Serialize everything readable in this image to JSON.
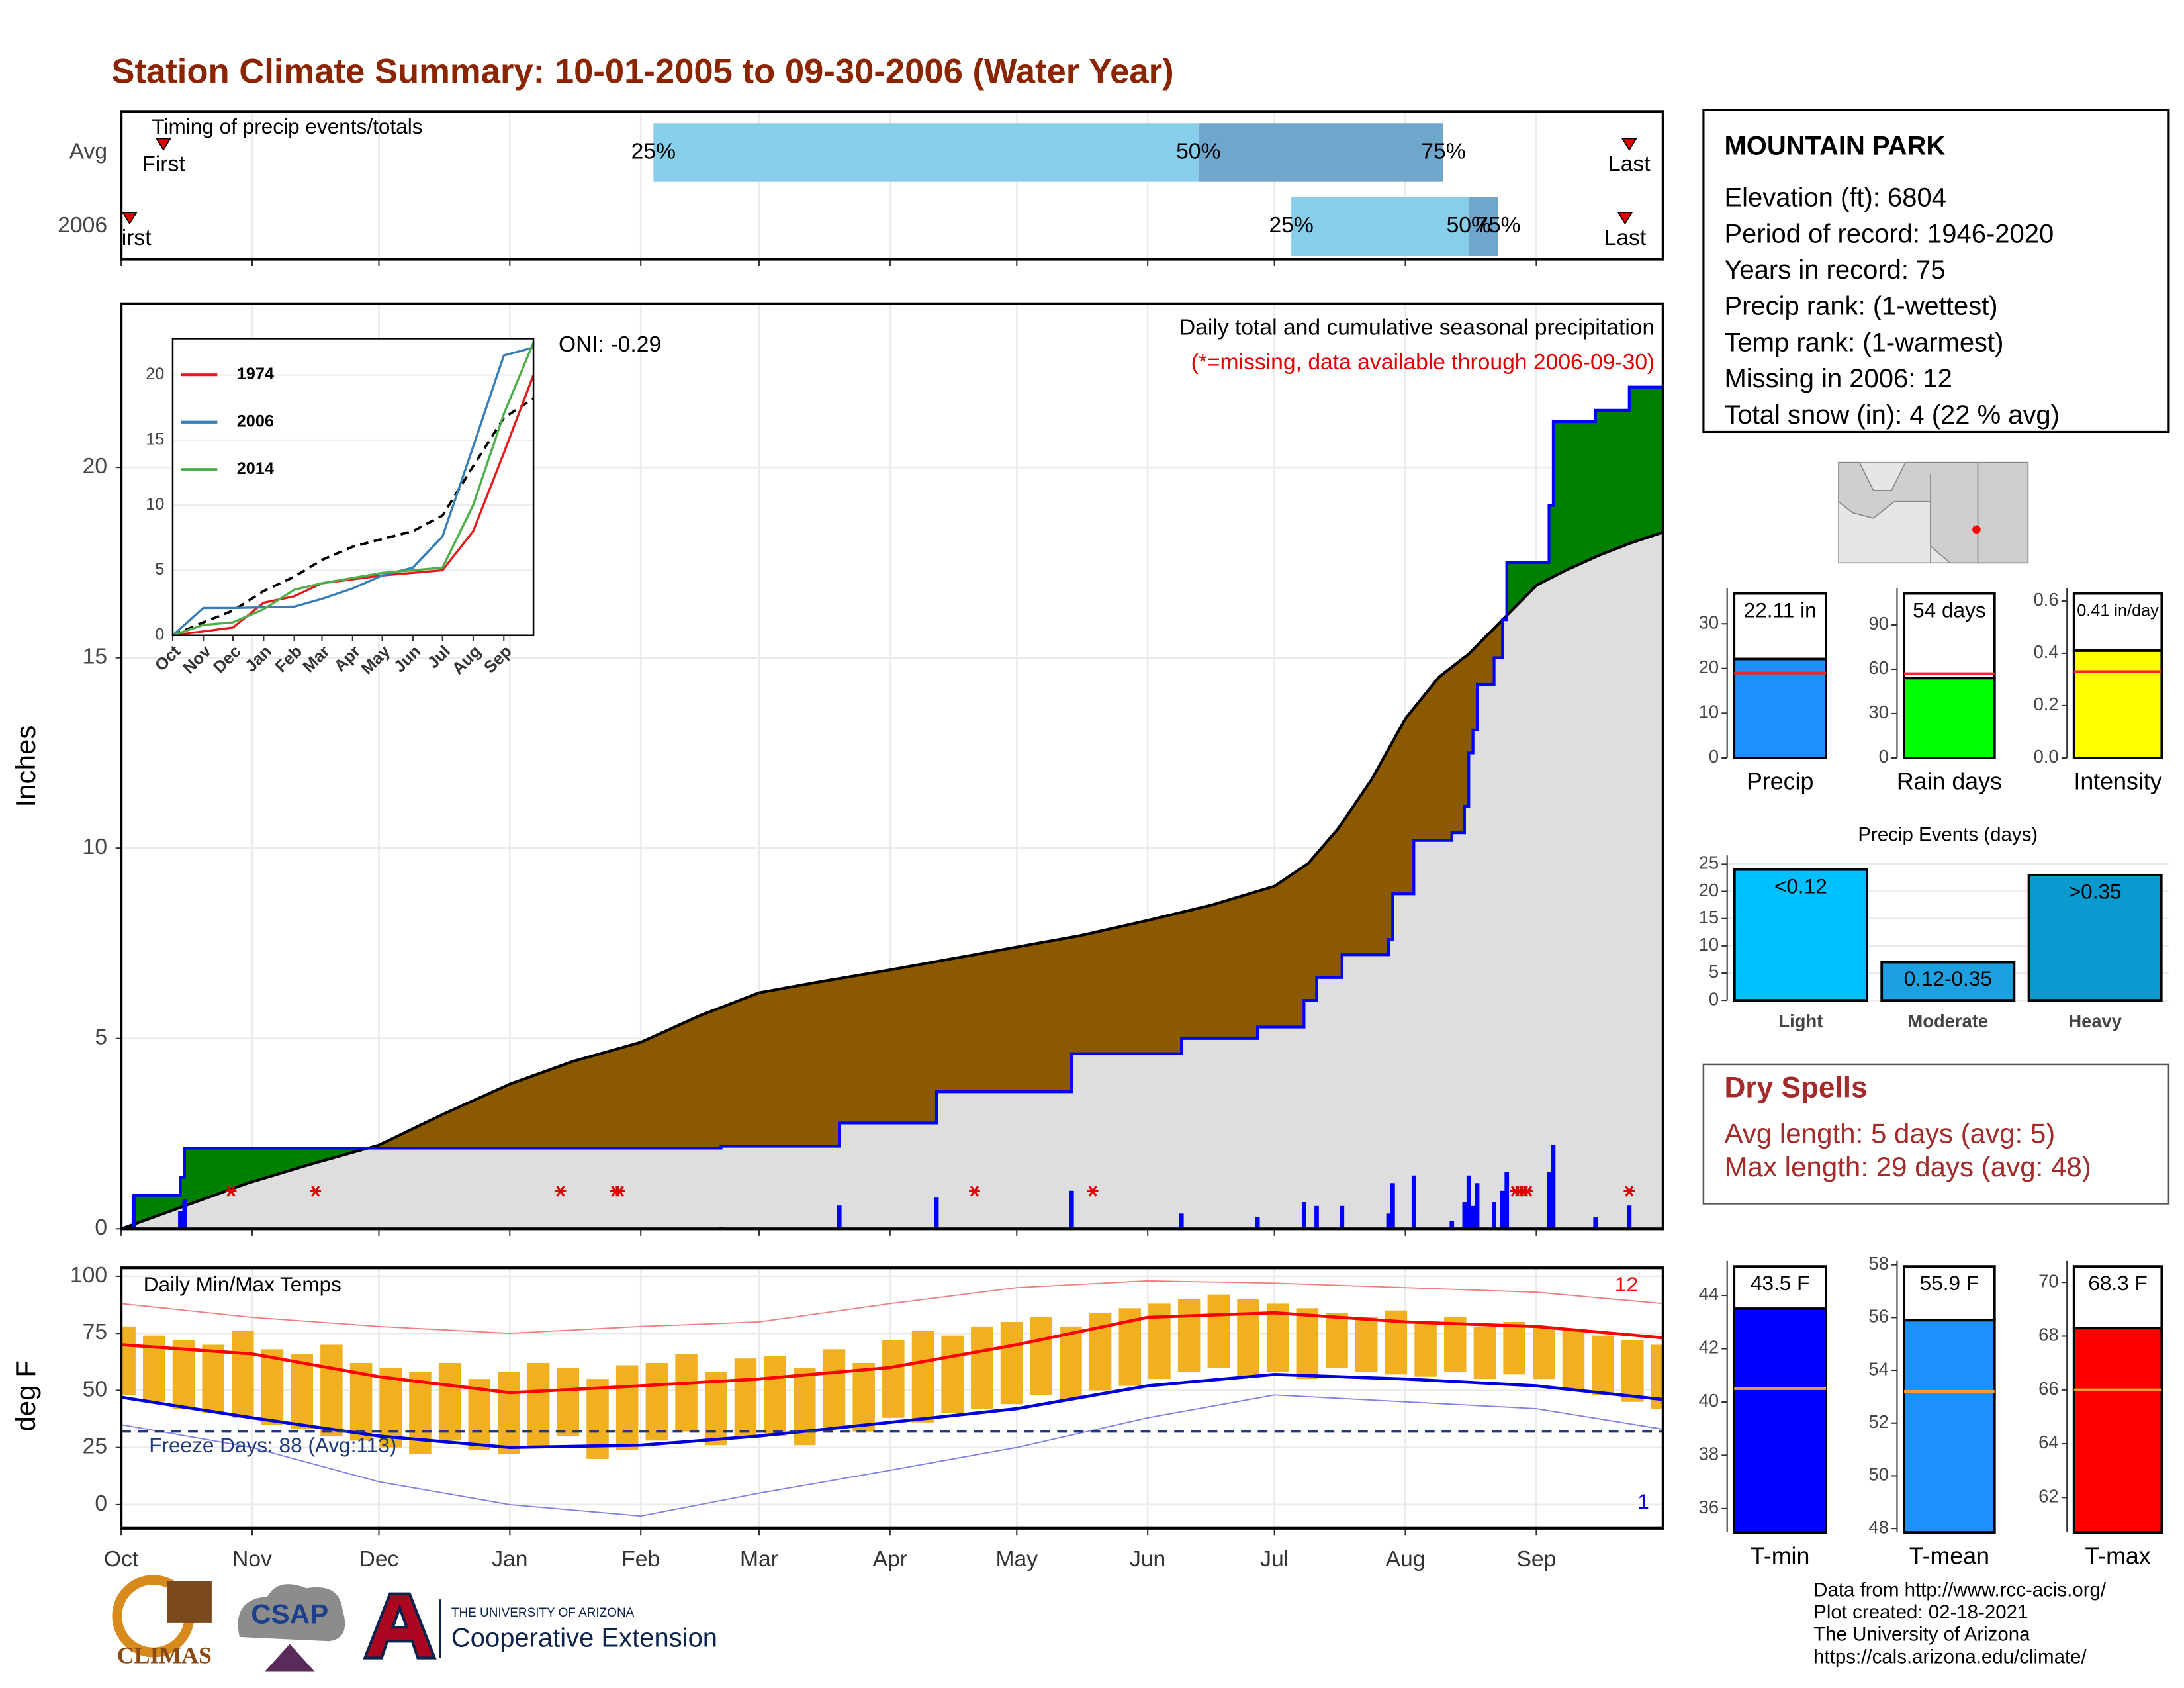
{
  "title": "Station Climate Summary: 10-01-2005 to 09-30-2006 (Water Year)",
  "station": {
    "name": "MOUNTAIN PARK",
    "lines": [
      "Elevation (ft): 6804",
      "Period of record: 1946-2020",
      "Years in record: 75",
      "Precip rank:  (1-wettest)",
      "Temp rank:  (1-warmest)",
      "Missing in 2006: 12",
      "Total snow (in): 4 (22 % avg)"
    ]
  },
  "dry_spells": {
    "title": "Dry Spells",
    "lines": [
      "Avg length: 5 days (avg: 5)",
      "Max length: 29 days (avg: 48)"
    ]
  },
  "footer": {
    "credits": [
      "Data from http://www.rcc-acis.org/",
      "Plot created: 02-18-2021",
      "The University of Arizona",
      "https://cals.arizona.edu/climate/"
    ],
    "logos": [
      "CLIMAS",
      "CSAP",
      "THE UNIVERSITY OF ARIZONA",
      "Cooperative Extension"
    ]
  },
  "chart_data": [
    {
      "type": "range",
      "title": "Timing of precip events/totals",
      "categories": [
        "Avg",
        "2006"
      ],
      "xlim": [
        0,
        365
      ],
      "xticks": [
        0,
        31,
        61,
        92,
        123,
        151,
        182,
        212,
        243,
        273,
        304,
        335
      ],
      "series": [
        {
          "name": "First",
          "values": [
            10,
            2
          ]
        },
        {
          "name": "25%",
          "values": [
            126,
            277
          ]
        },
        {
          "name": "50%",
          "values": [
            255,
            319
          ]
        },
        {
          "name": "75%",
          "values": [
            313,
            326
          ]
        },
        {
          "name": "Last",
          "values": [
            357,
            356
          ]
        }
      ],
      "colors": [
        "#87ceeb",
        "#6fa6cc"
      ],
      "marker_color": "#e00000"
    },
    {
      "type": "precip",
      "title": "Daily total and cumulative seasonal precipitation",
      "subtitle": "(*=missing, data available through 2006-09-30)",
      "annotation": "ONI: -0.29",
      "ylabel": "Inches",
      "xlim": [
        0,
        365
      ],
      "xticks": [
        0,
        31,
        61,
        92,
        123,
        151,
        182,
        212,
        243,
        273,
        304,
        335
      ],
      "ylim": [
        0,
        24.3
      ],
      "yticks": [
        0,
        5,
        10,
        15,
        20
      ],
      "grid": true,
      "daily": {
        "color": "#0000ff",
        "x": [
          3,
          14,
          15,
          142,
          170,
          193,
          225,
          251,
          269,
          280,
          283,
          289,
          300,
          301,
          306,
          315,
          318,
          319,
          320,
          321,
          325,
          327,
          328,
          338,
          339,
          349,
          357
        ],
        "values": [
          0.88,
          0.47,
          0.77,
          0.05,
          0.61,
          0.82,
          1.0,
          0.4,
          0.3,
          0.7,
          0.6,
          0.6,
          0.4,
          1.2,
          1.4,
          0.2,
          0.7,
          1.4,
          0.6,
          1.2,
          0.7,
          1.0,
          1.5,
          1.5,
          2.2,
          0.3,
          0.61
        ]
      },
      "cumulative": {
        "color": "#0000ff",
        "x": [
          0,
          3,
          3,
          14,
          14,
          15,
          15,
          142,
          142,
          170,
          170,
          193,
          193,
          225,
          225,
          251,
          251,
          269,
          269,
          280,
          280,
          283,
          283,
          289,
          289,
          300,
          300,
          301,
          301,
          306,
          306,
          315,
          315,
          318,
          318,
          319,
          319,
          320,
          320,
          321,
          321,
          325,
          325,
          327,
          327,
          328,
          328,
          338,
          338,
          339,
          339,
          349,
          349,
          357,
          357,
          365
        ],
        "values": [
          0,
          0,
          0.88,
          0.88,
          1.35,
          1.35,
          2.12,
          2.12,
          2.17,
          2.17,
          2.78,
          2.78,
          3.6,
          3.6,
          4.6,
          4.6,
          5.0,
          5.0,
          5.3,
          5.3,
          6.0,
          6.0,
          6.6,
          6.6,
          7.2,
          7.2,
          7.6,
          7.6,
          8.8,
          8.8,
          10.2,
          10.2,
          10.4,
          10.4,
          11.1,
          11.1,
          12.5,
          12.5,
          13.1,
          13.1,
          14.3,
          14.3,
          15.0,
          15.0,
          16.0,
          16.0,
          17.5,
          17.5,
          19.0,
          19.0,
          21.2,
          21.2,
          21.5,
          21.5,
          22.11,
          22.11
        ]
      },
      "average": {
        "color": "#000000",
        "fill": "#dedede",
        "x": [
          0,
          15,
          30,
          45,
          61,
          76,
          92,
          107,
          123,
          137,
          151,
          166,
          182,
          197,
          212,
          227,
          243,
          258,
          273,
          281,
          288,
          296,
          304,
          312,
          319,
          327,
          335,
          342,
          350,
          357,
          365
        ],
        "values": [
          0,
          0.6,
          1.2,
          1.7,
          2.2,
          3.0,
          3.8,
          4.4,
          4.9,
          5.6,
          6.2,
          6.5,
          6.8,
          7.1,
          7.4,
          7.7,
          8.1,
          8.5,
          9.0,
          9.6,
          10.5,
          11.8,
          13.4,
          14.5,
          15.1,
          16.0,
          16.9,
          17.3,
          17.7,
          18.0,
          18.3
        ]
      },
      "above_color": "#008000",
      "below_color": "#8b5a00",
      "missing_color": "#e00000",
      "missing_x": [
        26,
        46,
        104,
        117,
        118,
        202,
        230,
        330,
        331,
        332,
        333,
        357
      ]
    },
    {
      "type": "line",
      "xlim": [
        0,
        365
      ],
      "ylim": [
        0,
        22.8
      ],
      "yticks": [
        0,
        5,
        10,
        15,
        20
      ],
      "legend": "upper left",
      "xticks": [
        {
          "value": 0,
          "label": "Oct"
        },
        {
          "value": 31,
          "label": "Nov"
        },
        {
          "value": 61,
          "label": "Dec"
        },
        {
          "value": 92,
          "label": "Jan"
        },
        {
          "value": 123,
          "label": "Feb"
        },
        {
          "value": 151,
          "label": "Mar"
        },
        {
          "value": 182,
          "label": "Apr"
        },
        {
          "value": 212,
          "label": "May"
        },
        {
          "value": 243,
          "label": "Jun"
        },
        {
          "value": 273,
          "label": "Jul"
        },
        {
          "value": 304,
          "label": "Aug"
        },
        {
          "value": 335,
          "label": "Sep"
        }
      ],
      "x": [
        0,
        31,
        61,
        92,
        123,
        151,
        182,
        212,
        243,
        273,
        304,
        335,
        365
      ],
      "series": [
        {
          "name": "1974",
          "color": "#e41a1c",
          "values": [
            0,
            0.3,
            0.6,
            2.5,
            3,
            4,
            4.3,
            4.6,
            4.8,
            5,
            8,
            14,
            20
          ]
        },
        {
          "name": "2006",
          "color": "#377eb8",
          "values": [
            0,
            2.1,
            2.1,
            2.15,
            2.2,
            2.8,
            3.6,
            4.6,
            5.2,
            7.6,
            14.5,
            21.5,
            22.11
          ]
        },
        {
          "name": "2014",
          "color": "#4daf4a",
          "values": [
            0,
            0.8,
            1,
            2,
            3.5,
            4,
            4.4,
            4.8,
            5,
            5.2,
            10,
            17,
            22.5
          ]
        }
      ],
      "average": {
        "color": "#000000",
        "values": [
          0,
          1,
          1.9,
          3.4,
          4.5,
          5.8,
          6.8,
          7.4,
          8,
          9.2,
          13,
          16.7,
          18.2
        ]
      }
    },
    {
      "type": "temperature",
      "title": "Daily Min/Max Temps",
      "ylabel": "deg F",
      "annotation": "Freeze Days: 88 (Avg:113)",
      "record_high_count": 12,
      "record_low_count": 1,
      "xlim": [
        0,
        365
      ],
      "ylim": [
        -10.4,
        103.7
      ],
      "yticks": [
        0,
        25,
        50,
        75,
        100
      ],
      "grid": true,
      "xticks": [
        {
          "value": 0,
          "label": "Oct"
        },
        {
          "value": 31,
          "label": "Nov"
        },
        {
          "value": 61,
          "label": "Dec"
        },
        {
          "value": 92,
          "label": "Jan"
        },
        {
          "value": 123,
          "label": "Feb"
        },
        {
          "value": 151,
          "label": "Mar"
        },
        {
          "value": 182,
          "label": "Apr"
        },
        {
          "value": 212,
          "label": "May"
        },
        {
          "value": 243,
          "label": "Jun"
        },
        {
          "value": 273,
          "label": "Jul"
        },
        {
          "value": 304,
          "label": "Aug"
        },
        {
          "value": 335,
          "label": "Sep"
        }
      ],
      "bar_color": "#f0b020",
      "x": [
        0,
        7,
        14,
        21,
        28,
        35,
        42,
        49,
        56,
        63,
        70,
        77,
        84,
        91,
        98,
        105,
        112,
        119,
        126,
        133,
        140,
        147,
        154,
        161,
        168,
        175,
        182,
        189,
        196,
        203,
        210,
        217,
        224,
        231,
        238,
        245,
        252,
        259,
        266,
        273,
        280,
        287,
        294,
        301,
        308,
        315,
        322,
        329,
        336,
        343,
        350,
        357,
        364
      ],
      "max": [
        78,
        74,
        72,
        70,
        76,
        68,
        66,
        70,
        62,
        60,
        58,
        62,
        55,
        58,
        62,
        60,
        55,
        61,
        62,
        66,
        58,
        64,
        65,
        60,
        68,
        62,
        72,
        76,
        74,
        78,
        80,
        82,
        78,
        84,
        86,
        88,
        90,
        92,
        90,
        88,
        86,
        84,
        82,
        85,
        80,
        82,
        78,
        80,
        78,
        76,
        74,
        72,
        70
      ],
      "min": [
        48,
        45,
        42,
        40,
        38,
        35,
        33,
        30,
        28,
        25,
        22,
        28,
        24,
        22,
        25,
        30,
        20,
        24,
        28,
        32,
        26,
        30,
        30,
        26,
        34,
        32,
        38,
        36,
        40,
        42,
        44,
        48,
        46,
        50,
        52,
        55,
        58,
        60,
        56,
        58,
        55,
        60,
        58,
        57,
        56,
        58,
        55,
        57,
        55,
        50,
        48,
        45,
        42
      ],
      "normal_x": [
        0,
        31,
        61,
        92,
        123,
        151,
        182,
        212,
        243,
        273,
        304,
        335,
        365
      ],
      "normal_max": {
        "color": "#ff0000",
        "values": [
          70,
          66,
          56,
          49,
          52,
          55,
          60,
          70,
          82,
          84,
          80,
          78,
          73
        ]
      },
      "normal_min": {
        "color": "#0000dd",
        "values": [
          47,
          38,
          30,
          25,
          26,
          30,
          36,
          42,
          52,
          57,
          55,
          52,
          46
        ]
      },
      "record_high": {
        "color": "#f08080",
        "values": [
          88,
          82,
          78,
          75,
          78,
          80,
          88,
          95,
          98,
          97,
          95,
          93,
          88
        ]
      },
      "record_low": {
        "color": "#8080e8",
        "values": [
          35,
          25,
          10,
          0,
          -5,
          5,
          15,
          25,
          38,
          48,
          45,
          42,
          33
        ]
      },
      "freeze": {
        "color": "#1f3a78",
        "value": 32
      }
    },
    {
      "type": "summary_bar",
      "categories": [
        "Precip"
      ],
      "values": [
        22.11
      ],
      "value_labels": [
        "22.11 in"
      ],
      "average": 19,
      "average_color": "#ff2020",
      "color": "#1e90ff",
      "ylim": [
        0,
        38
      ],
      "yticks": [
        0,
        10,
        20,
        30
      ]
    },
    {
      "type": "summary_bar",
      "categories": [
        "Rain days"
      ],
      "values": [
        54
      ],
      "value_labels": [
        "54 days"
      ],
      "average": 57,
      "average_color": "#ff2020",
      "color": "#00ff00",
      "ylim": [
        0,
        115
      ],
      "yticks": [
        0,
        30,
        60,
        90
      ]
    },
    {
      "type": "summary_bar",
      "categories": [
        "Intensity"
      ],
      "values": [
        0.41
      ],
      "value_labels": [
        "0.41 in/day"
      ],
      "average": 0.33,
      "average_color": "#ff2020",
      "color": "#ffff00",
      "ylim": [
        0,
        0.65
      ],
      "yticks": [
        {
          "value": 0,
          "label": "0.0"
        },
        0.2,
        0.4,
        0.6
      ]
    },
    {
      "type": "bar",
      "title": "Precip Events (days)",
      "categories": [
        "Light",
        "Moderate",
        "Heavy"
      ],
      "values": [
        24,
        7,
        23
      ],
      "bin_labels": [
        "<0.12",
        "0.12-0.35",
        ">0.35"
      ],
      "colors": [
        "#00bfff",
        "#1ca0e0",
        "#0a9ad0"
      ],
      "ylim": [
        0,
        26.6
      ],
      "yticks": [
        0,
        5,
        10,
        15,
        20,
        25
      ],
      "grid": true
    },
    {
      "type": "summary_bar",
      "categories": [
        "T-min"
      ],
      "values": [
        43.5
      ],
      "value_labels": [
        "43.5 F"
      ],
      "average": 40.5,
      "average_color": "#f0a030",
      "color": "#0000ff",
      "ylim": [
        35.1,
        45.3
      ],
      "yticks": [
        36,
        38,
        40,
        42,
        44
      ]
    },
    {
      "type": "summary_bar",
      "categories": [
        "T-mean"
      ],
      "values": [
        55.9
      ],
      "value_labels": [
        "55.9 F"
      ],
      "average": 53.2,
      "average_color": "#f0a030",
      "color": "#1e90ff",
      "ylim": [
        47.85,
        58.15
      ],
      "yticks": [
        48,
        50,
        52,
        54,
        56,
        58
      ]
    },
    {
      "type": "summary_bar",
      "categories": [
        "T-max"
      ],
      "values": [
        68.3
      ],
      "value_labels": [
        "68.3 F"
      ],
      "average": 66,
      "average_color": "#f0a030",
      "color": "#ff0000",
      "ylim": [
        60.7,
        70.8
      ],
      "yticks": [
        62,
        64,
        66,
        68,
        70
      ]
    }
  ]
}
